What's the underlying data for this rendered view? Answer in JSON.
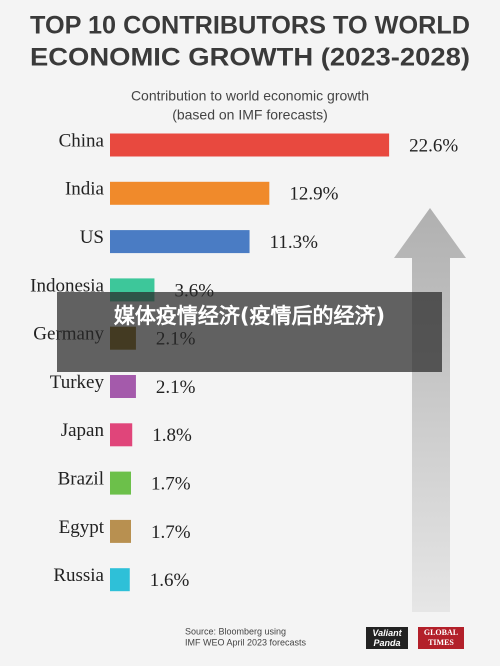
{
  "chart_data": {
    "type": "bar",
    "orientation": "horizontal",
    "title": [
      "TOP 10 CONTRIBUTORS TO WORLD",
      "ECONOMIC GROWTH (2023-2028)"
    ],
    "subtitle": [
      "Contribution to world economic growth",
      "(based on IMF forecasts)"
    ],
    "categories": [
      "China",
      "India",
      "US",
      "Indonesia",
      "Germany",
      "Turkey",
      "Japan",
      "Brazil",
      "Egypt",
      "Russia"
    ],
    "values": [
      22.6,
      12.9,
      11.3,
      3.6,
      2.1,
      2.1,
      1.8,
      1.7,
      1.7,
      1.6
    ],
    "value_labels": [
      "22.6%",
      "12.9%",
      "11.3%",
      "3.6%",
      "2.1%",
      "2.1%",
      "1.8%",
      "1.7%",
      "1.7%",
      "1.6%"
    ],
    "colors": [
      "#e8493f",
      "#f08a2b",
      "#4a7cc4",
      "#3dc79a",
      "#8a6a14",
      "#a45aab",
      "#e0457a",
      "#6cc04a",
      "#b89050",
      "#2ec0d8"
    ],
    "source": [
      "Source: Bloomberg using",
      "IMF WEO April 2023 forecasts"
    ]
  },
  "logos": [
    "Valiant Panda",
    "GLOBAL TIMES"
  ],
  "overlay": {
    "text": "媒体疫情经济(疫情后的经济)"
  }
}
